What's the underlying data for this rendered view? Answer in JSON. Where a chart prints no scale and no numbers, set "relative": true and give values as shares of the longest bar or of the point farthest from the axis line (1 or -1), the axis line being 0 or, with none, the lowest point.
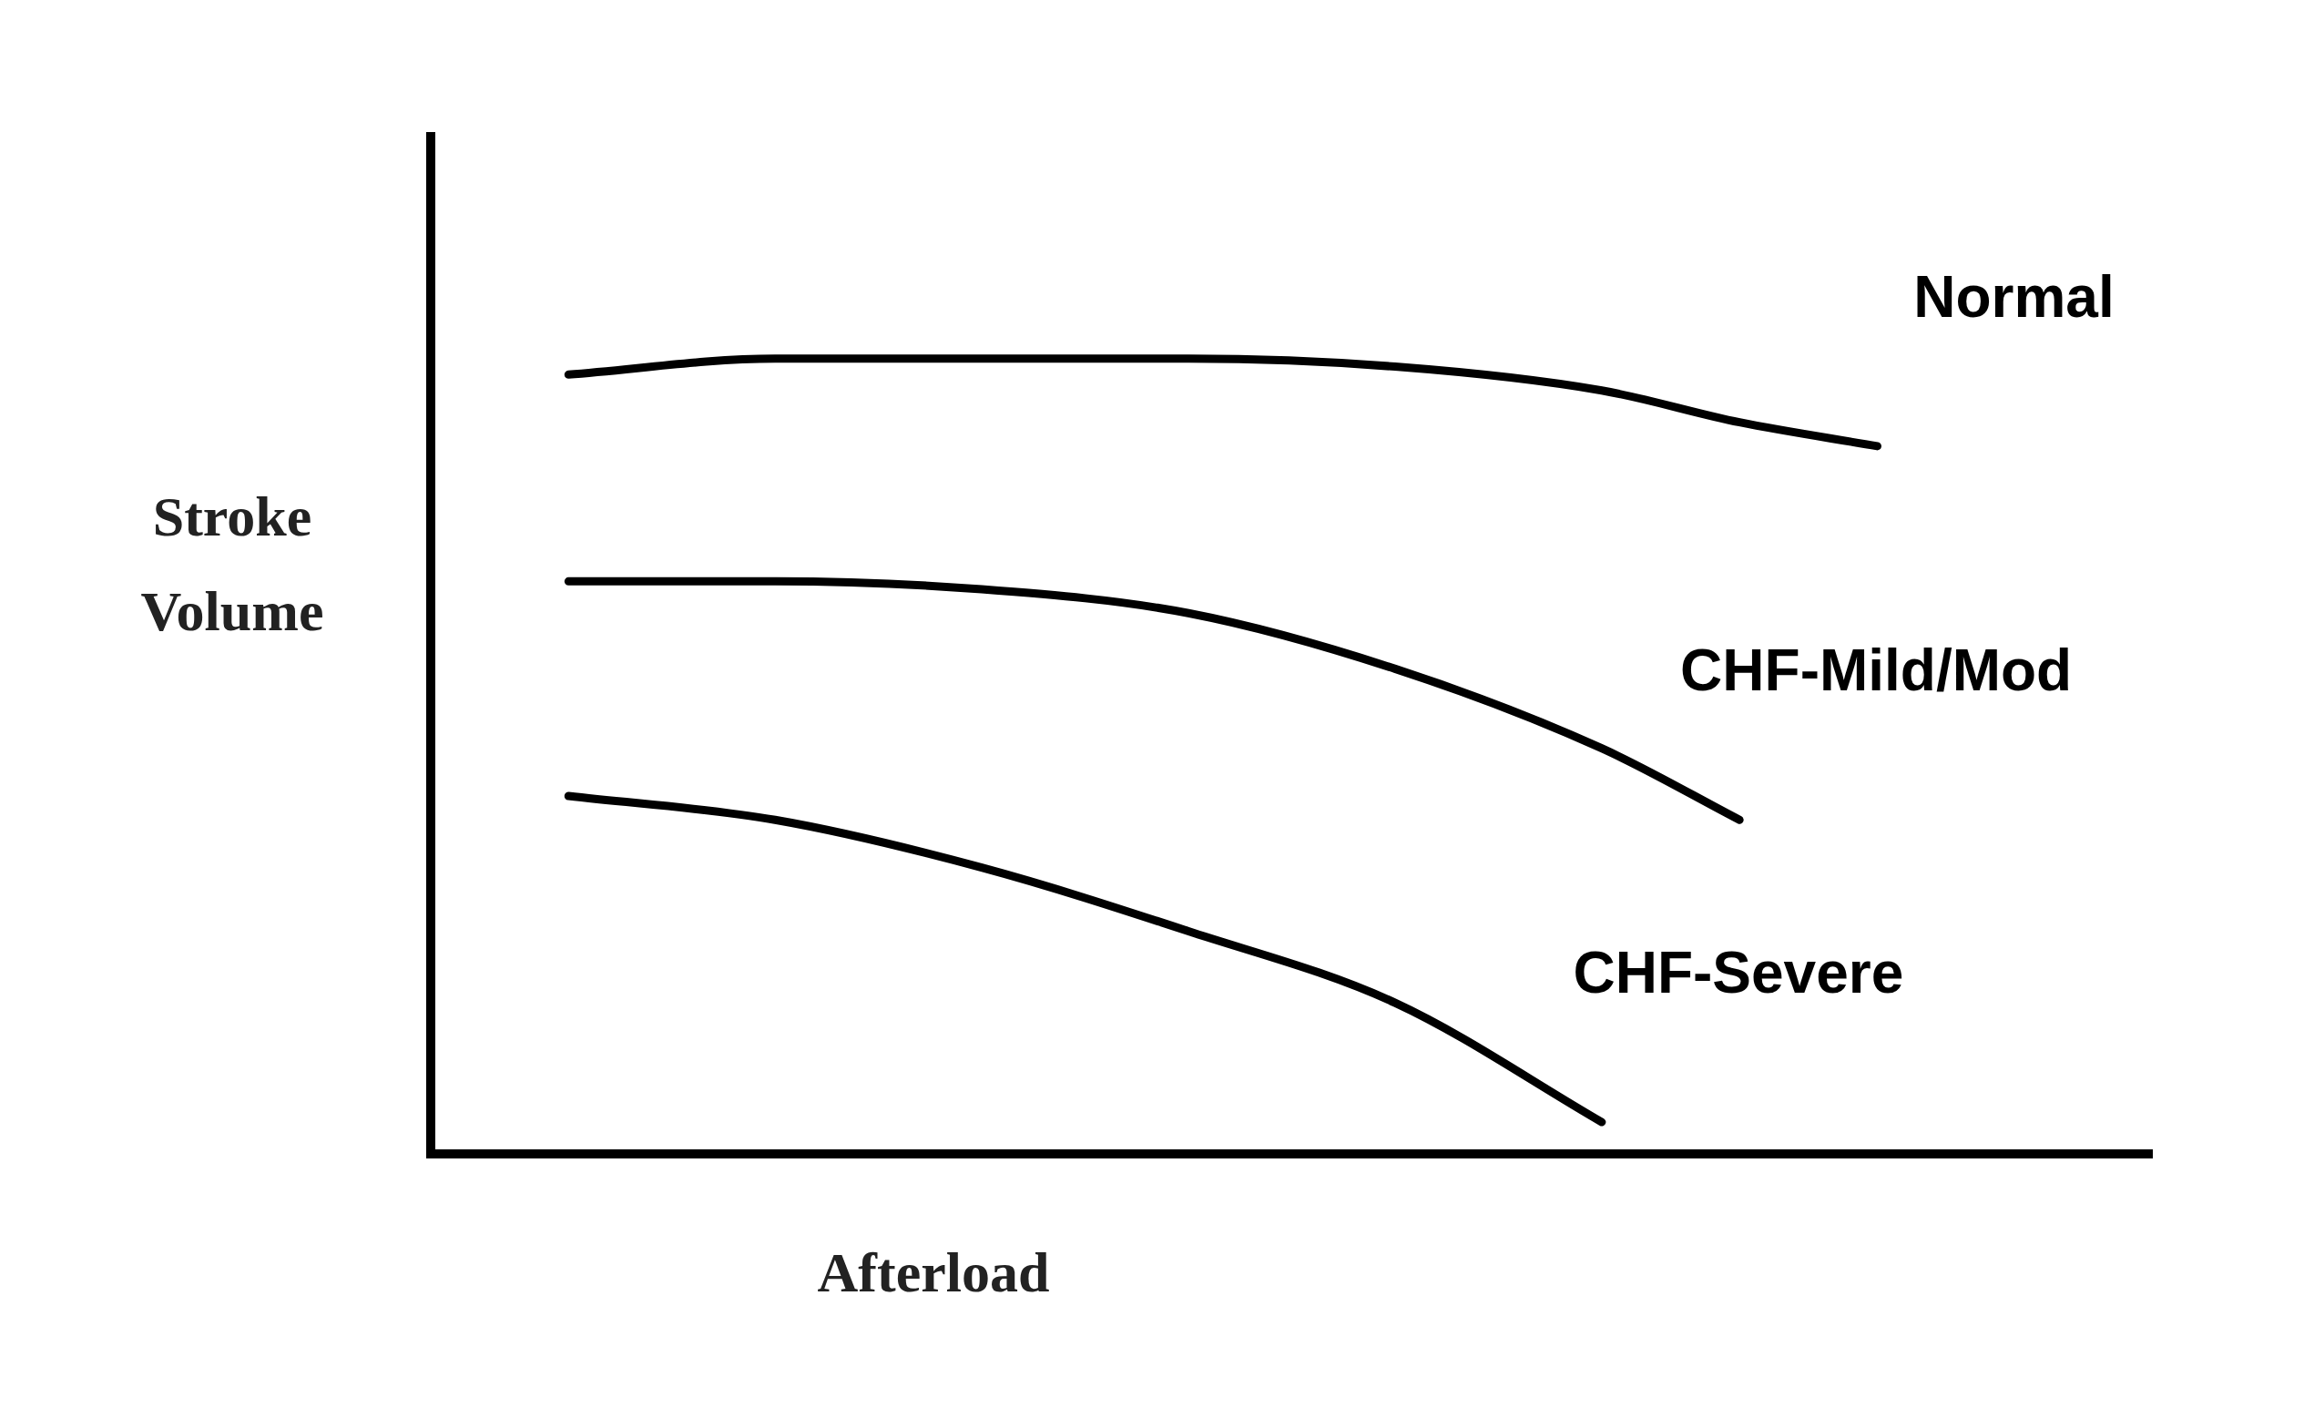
{
  "chart_data": {
    "type": "line",
    "relative": true,
    "xlabel": "Afterload",
    "ylabel": "Stroke Volume",
    "categories": [
      null,
      null,
      null,
      null,
      null,
      null,
      null,
      null,
      null,
      null,
      null,
      null,
      null,
      null,
      null,
      null,
      null,
      null,
      null,
      null,
      null,
      null,
      null,
      null,
      null,
      null
    ],
    "series": [
      {
        "name": "Normal",
        "color": "#000000",
        "values": [
          null,
          null,
          0.98,
          null,
          null,
          1.0,
          null,
          null,
          1.0,
          null,
          null,
          1.0,
          null,
          null,
          0.99,
          null,
          null,
          0.96,
          null,
          0.92,
          null,
          0.89,
          null,
          null,
          null,
          null
        ]
      },
      {
        "name": "CHF-Mild/Mod",
        "color": "#000000",
        "values": [
          null,
          null,
          0.72,
          null,
          null,
          0.72,
          null,
          null,
          0.71,
          null,
          null,
          0.68,
          null,
          null,
          0.61,
          null,
          null,
          0.51,
          null,
          0.42,
          null,
          null,
          null,
          null,
          null,
          null
        ]
      },
      {
        "name": "CHF-Severe",
        "color": "#000000",
        "values": [
          null,
          null,
          0.45,
          null,
          null,
          0.42,
          null,
          null,
          0.36,
          null,
          null,
          0.28,
          null,
          null,
          0.19,
          null,
          null,
          0.04,
          null,
          null,
          null,
          null,
          null,
          null,
          null,
          null
        ]
      }
    ],
    "legend": false,
    "marker": "none",
    "line_style": "solid"
  }
}
